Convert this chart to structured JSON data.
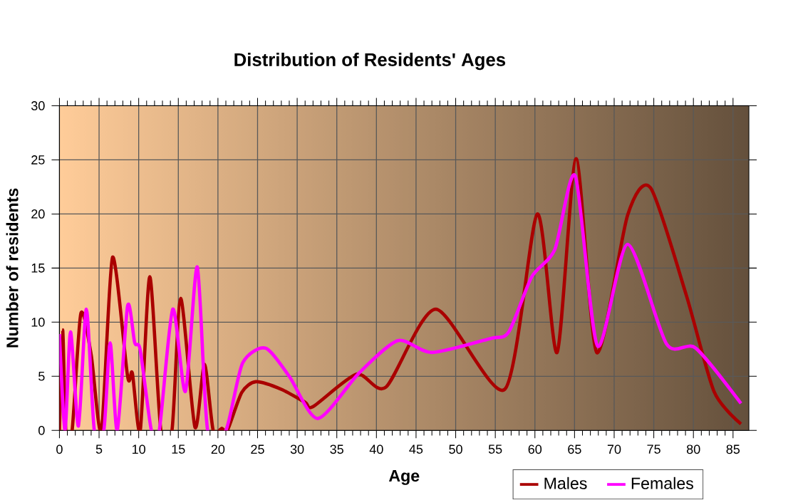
{
  "chart_data": {
    "type": "line",
    "title": "Distribution of Residents' Ages",
    "xlabel": "Age",
    "ylabel": "Number of residents",
    "xlim": [
      0,
      87
    ],
    "ylim": [
      0,
      30
    ],
    "xticks": [
      0,
      5,
      10,
      15,
      20,
      25,
      30,
      35,
      40,
      45,
      50,
      55,
      60,
      65,
      70,
      75,
      80,
      85
    ],
    "yticks": [
      0,
      5,
      10,
      15,
      20,
      25,
      30
    ],
    "grid": true,
    "legend": "bottom right",
    "marker": "none",
    "line_style": "solid",
    "series": [
      {
        "name": "Males",
        "color": "#aa0000",
        "x": [
          0,
          0.4,
          0.8,
          1.6,
          2.7,
          4,
          5.3,
          6.7,
          8.6,
          9.2,
          10.2,
          11.4,
          12.8,
          14.2,
          15.3,
          17.1,
          18.3,
          19.4,
          20.5,
          21.2,
          23,
          24.8,
          28,
          31,
          32,
          37.5,
          41.2,
          47.5,
          56.2,
          60.3,
          62.8,
          65.2,
          67.8,
          71.7,
          74.6,
          79.1,
          82.6,
          86
        ],
        "values": [
          0,
          9.3,
          0,
          0,
          10.8,
          7,
          0,
          16,
          5,
          5.3,
          0,
          14.2,
          0,
          0,
          12.2,
          0.3,
          6.1,
          0,
          0.2,
          0,
          3.5,
          4.5,
          3.8,
          2.6,
          2.2,
          5.2,
          4,
          11.2,
          3.8,
          20,
          7.2,
          25.1,
          7.2,
          19.9,
          22.4,
          12.5,
          3.6,
          0.6
        ]
      },
      {
        "name": "Females",
        "color": "#ff00ff",
        "x": [
          0,
          0.7,
          1.4,
          2.4,
          3.4,
          4.4,
          5.6,
          6.4,
          7.3,
          8.6,
          9.5,
          10.2,
          11.6,
          12.6,
          14.3,
          15.9,
          17.4,
          18.7,
          21,
          23.1,
          26,
          29,
          32.6,
          37.8,
          42.7,
          47,
          54.4,
          56.7,
          59.6,
          62.5,
          65.1,
          67.9,
          71.7,
          76.6,
          80.3,
          86
        ],
        "values": [
          8.9,
          0,
          9.1,
          0.4,
          11.2,
          0,
          0,
          8.1,
          0,
          11.5,
          8.1,
          7.4,
          0,
          0,
          11.2,
          3.6,
          15.1,
          0,
          0,
          6.2,
          7.6,
          5,
          1.1,
          5.3,
          8.3,
          7.2,
          8.5,
          9.1,
          14.2,
          16.7,
          23.5,
          7.8,
          17.2,
          8,
          7.6,
          2.5
        ]
      }
    ]
  }
}
